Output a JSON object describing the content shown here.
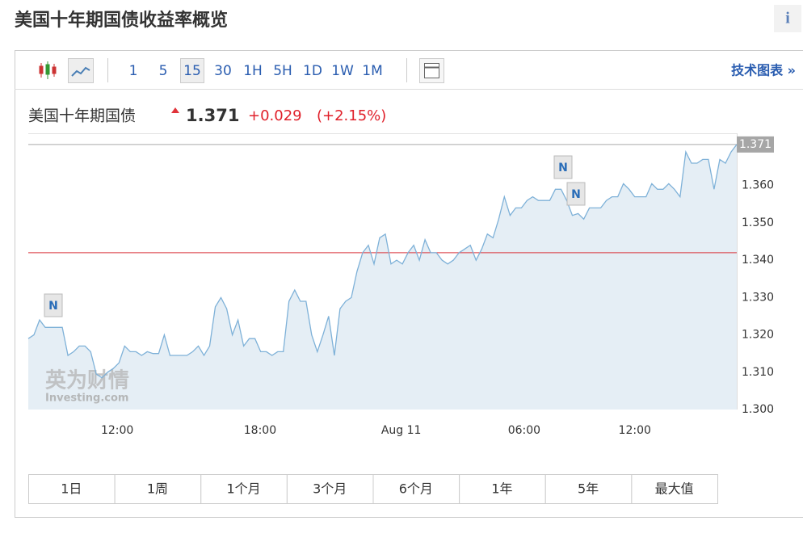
{
  "header": {
    "title": "美国十年期国债收益率概览",
    "info_icon": "i"
  },
  "toolbar": {
    "intervals": [
      "1",
      "5",
      "15",
      "30",
      "1H",
      "5H",
      "1D",
      "1W",
      "1M"
    ],
    "selected_interval": "15",
    "technical_link": "技术图表 »"
  },
  "chart_data": {
    "type": "line",
    "quote_name": "美国十年期国债",
    "price": 1.371,
    "change": "+0.029",
    "change_pct": "(+2.15%)",
    "color": "#7eb1d8",
    "fill_color": "#e5eef5",
    "values": [
      1.319,
      1.32,
      1.324,
      1.322,
      1.322,
      1.322,
      1.322,
      1.3145,
      1.3155,
      1.317,
      1.317,
      1.3155,
      1.3095,
      1.3085,
      1.31,
      1.311,
      1.3125,
      1.317,
      1.3155,
      1.3155,
      1.3145,
      1.3155,
      1.315,
      1.315,
      1.32,
      1.3145,
      1.3145,
      1.3145,
      1.3145,
      1.3155,
      1.317,
      1.3145,
      1.317,
      1.3275,
      1.33,
      1.327,
      1.32,
      1.324,
      1.317,
      1.319,
      1.319,
      1.3155,
      1.3155,
      1.3145,
      1.3155,
      1.3155,
      1.329,
      1.332,
      1.329,
      1.329,
      1.32,
      1.3155,
      1.32,
      1.325,
      1.3145,
      1.327,
      1.329,
      1.33,
      1.337,
      1.342,
      1.344,
      1.339,
      1.346,
      1.347,
      1.339,
      1.34,
      1.339,
      1.342,
      1.344,
      1.34,
      1.3455,
      1.342,
      1.342,
      1.34,
      1.339,
      1.34,
      1.342,
      1.343,
      1.344,
      1.34,
      1.343,
      1.347,
      1.346,
      1.351,
      1.357,
      1.352,
      1.354,
      1.354,
      1.356,
      1.357,
      1.356,
      1.356,
      1.356,
      1.359,
      1.359,
      1.356,
      1.352,
      1.3525,
      1.351,
      1.354,
      1.354,
      1.354,
      1.356,
      1.357,
      1.357,
      1.3605,
      1.359,
      1.357,
      1.357,
      1.357,
      1.3605,
      1.359,
      1.359,
      1.3605,
      1.359,
      1.357,
      1.369,
      1.366,
      1.366,
      1.367,
      1.367,
      1.359,
      1.367,
      1.366,
      1.369,
      1.371
    ],
    "ylim": [
      1.3,
      1.374
    ],
    "yticks": [
      {
        "value": 1.3,
        "label": "1.300"
      },
      {
        "value": 1.31,
        "label": "1.310"
      },
      {
        "value": 1.32,
        "label": "1.320"
      },
      {
        "value": 1.33,
        "label": "1.330"
      },
      {
        "value": 1.34,
        "label": "1.340"
      },
      {
        "value": 1.35,
        "label": "1.350"
      },
      {
        "value": 1.36,
        "label": "1.360"
      }
    ],
    "xticks": [
      {
        "value": 15.7,
        "label": "12:00"
      },
      {
        "value": 40.9,
        "label": "18:00"
      },
      {
        "value": 65.8,
        "label": "Aug 11"
      },
      {
        "value": 87.5,
        "label": "06:00"
      },
      {
        "value": 107,
        "label": "12:00"
      }
    ],
    "reference_line": {
      "value": 1.342,
      "color": "#d9363e"
    },
    "news_markers": [
      "N",
      "N",
      "N"
    ],
    "watermark": [
      "英为财情",
      "Investing.com"
    ]
  },
  "range_buttons": [
    "1日",
    "1周",
    "1个月",
    "3个月",
    "6个月",
    "1年",
    "5年",
    "最大值"
  ]
}
